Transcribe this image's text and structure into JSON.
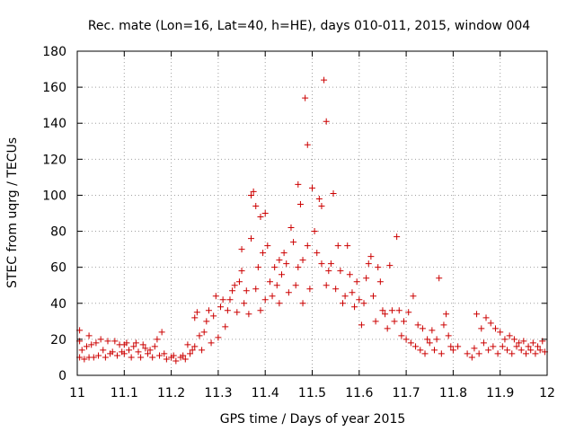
{
  "colors": {
    "points": "#cc0000",
    "axes": "#000000",
    "grid": "#a0a0a0"
  },
  "chart_data": {
    "type": "scatter",
    "title": "Rec. mate (Lon=16, Lat=40, h=HE), days 010-011, 2015, window 004",
    "xlabel": "GPS time / Days of year 2015",
    "ylabel": "STEC from uqrg / TECUs",
    "xlim": [
      11,
      12
    ],
    "ylim": [
      0,
      180
    ],
    "grid": true,
    "x_ticks": [
      11,
      11.1,
      11.2,
      11.3,
      11.4,
      11.5,
      11.6,
      11.7,
      11.8,
      11.9,
      12
    ],
    "x_tick_labels": [
      "11",
      "11.1",
      "11.2",
      "11.3",
      "11.4",
      "11.5",
      "11.6",
      "11.7",
      "11.8",
      "11.9",
      "12"
    ],
    "y_ticks": [
      0,
      20,
      40,
      60,
      80,
      100,
      120,
      140,
      160,
      180
    ],
    "y_tick_labels": [
      "0",
      "20",
      "40",
      "60",
      "80",
      "100",
      "120",
      "140",
      "160",
      "180"
    ],
    "marker": "+",
    "series": [
      {
        "name": "STEC",
        "points": [
          [
            11.005,
            25
          ],
          [
            11.005,
            19
          ],
          [
            11.005,
            10
          ],
          [
            11.01,
            14
          ],
          [
            11.015,
            9
          ],
          [
            11.02,
            16
          ],
          [
            11.025,
            22
          ],
          [
            11.025,
            10
          ],
          [
            11.03,
            17
          ],
          [
            11.035,
            10
          ],
          [
            11.04,
            18
          ],
          [
            11.045,
            11
          ],
          [
            11.05,
            20
          ],
          [
            11.055,
            14
          ],
          [
            11.06,
            10
          ],
          [
            11.065,
            19
          ],
          [
            11.07,
            12
          ],
          [
            11.075,
            13
          ],
          [
            11.08,
            19
          ],
          [
            11.085,
            11
          ],
          [
            11.09,
            17
          ],
          [
            11.095,
            13
          ],
          [
            11.1,
            12
          ],
          [
            11.1,
            17
          ],
          [
            11.105,
            18
          ],
          [
            11.11,
            14
          ],
          [
            11.115,
            10
          ],
          [
            11.12,
            16
          ],
          [
            11.125,
            18
          ],
          [
            11.13,
            13
          ],
          [
            11.135,
            10
          ],
          [
            11.14,
            17
          ],
          [
            11.145,
            15
          ],
          [
            11.15,
            12
          ],
          [
            11.155,
            14
          ],
          [
            11.16,
            10
          ],
          [
            11.165,
            16
          ],
          [
            11.17,
            20
          ],
          [
            11.175,
            11
          ],
          [
            11.18,
            24
          ],
          [
            11.185,
            12
          ],
          [
            11.19,
            9
          ],
          [
            11.2,
            10
          ],
          [
            11.205,
            11
          ],
          [
            11.21,
            8
          ],
          [
            11.22,
            10
          ],
          [
            11.225,
            11
          ],
          [
            11.23,
            9
          ],
          [
            11.235,
            17
          ],
          [
            11.24,
            12
          ],
          [
            11.245,
            14
          ],
          [
            11.25,
            32
          ],
          [
            11.25,
            16
          ],
          [
            11.255,
            35
          ],
          [
            11.26,
            22
          ],
          [
            11.265,
            14
          ],
          [
            11.27,
            24
          ],
          [
            11.275,
            30
          ],
          [
            11.28,
            36
          ],
          [
            11.285,
            18
          ],
          [
            11.29,
            33
          ],
          [
            11.295,
            44
          ],
          [
            11.3,
            21
          ],
          [
            11.305,
            38
          ],
          [
            11.31,
            42
          ],
          [
            11.315,
            27
          ],
          [
            11.32,
            36
          ],
          [
            11.325,
            42
          ],
          [
            11.33,
            47
          ],
          [
            11.335,
            50
          ],
          [
            11.34,
            35
          ],
          [
            11.345,
            52
          ],
          [
            11.35,
            58
          ],
          [
            11.35,
            70
          ],
          [
            11.355,
            40
          ],
          [
            11.36,
            47
          ],
          [
            11.365,
            34
          ],
          [
            11.37,
            76
          ],
          [
            11.37,
            100
          ],
          [
            11.375,
            102
          ],
          [
            11.38,
            48
          ],
          [
            11.38,
            94
          ],
          [
            11.385,
            60
          ],
          [
            11.39,
            36
          ],
          [
            11.39,
            88
          ],
          [
            11.395,
            68
          ],
          [
            11.4,
            42
          ],
          [
            11.4,
            90
          ],
          [
            11.405,
            72
          ],
          [
            11.41,
            52
          ],
          [
            11.415,
            44
          ],
          [
            11.42,
            60
          ],
          [
            11.425,
            50
          ],
          [
            11.43,
            64
          ],
          [
            11.43,
            40
          ],
          [
            11.435,
            56
          ],
          [
            11.44,
            68
          ],
          [
            11.445,
            62
          ],
          [
            11.45,
            46
          ],
          [
            11.455,
            82
          ],
          [
            11.46,
            74
          ],
          [
            11.465,
            50
          ],
          [
            11.47,
            106
          ],
          [
            11.47,
            60
          ],
          [
            11.475,
            95
          ],
          [
            11.48,
            64
          ],
          [
            11.48,
            40
          ],
          [
            11.485,
            154
          ],
          [
            11.49,
            128
          ],
          [
            11.49,
            72
          ],
          [
            11.495,
            48
          ],
          [
            11.5,
            104
          ],
          [
            11.505,
            80
          ],
          [
            11.51,
            68
          ],
          [
            11.515,
            98
          ],
          [
            11.52,
            94
          ],
          [
            11.52,
            62
          ],
          [
            11.525,
            164
          ],
          [
            11.53,
            141
          ],
          [
            11.53,
            50
          ],
          [
            11.535,
            58
          ],
          [
            11.54,
            62
          ],
          [
            11.545,
            101
          ],
          [
            11.55,
            48
          ],
          [
            11.555,
            72
          ],
          [
            11.56,
            58
          ],
          [
            11.565,
            40
          ],
          [
            11.57,
            44
          ],
          [
            11.575,
            72
          ],
          [
            11.58,
            56
          ],
          [
            11.585,
            46
          ],
          [
            11.59,
            38
          ],
          [
            11.595,
            52
          ],
          [
            11.6,
            42
          ],
          [
            11.605,
            28
          ],
          [
            11.61,
            40
          ],
          [
            11.615,
            54
          ],
          [
            11.62,
            62
          ],
          [
            11.625,
            66
          ],
          [
            11.63,
            44
          ],
          [
            11.635,
            30
          ],
          [
            11.64,
            60
          ],
          [
            11.645,
            52
          ],
          [
            11.65,
            36
          ],
          [
            11.655,
            34
          ],
          [
            11.66,
            26
          ],
          [
            11.665,
            61
          ],
          [
            11.67,
            36
          ],
          [
            11.675,
            30
          ],
          [
            11.68,
            77
          ],
          [
            11.685,
            36
          ],
          [
            11.69,
            22
          ],
          [
            11.695,
            30
          ],
          [
            11.7,
            20
          ],
          [
            11.705,
            35
          ],
          [
            11.71,
            18
          ],
          [
            11.715,
            44
          ],
          [
            11.72,
            16
          ],
          [
            11.725,
            28
          ],
          [
            11.73,
            14
          ],
          [
            11.735,
            26
          ],
          [
            11.74,
            12
          ],
          [
            11.745,
            20
          ],
          [
            11.75,
            18
          ],
          [
            11.755,
            25
          ],
          [
            11.76,
            14
          ],
          [
            11.765,
            20
          ],
          [
            11.77,
            54
          ],
          [
            11.775,
            12
          ],
          [
            11.78,
            28
          ],
          [
            11.785,
            34
          ],
          [
            11.79,
            22
          ],
          [
            11.795,
            16
          ],
          [
            11.8,
            14
          ],
          [
            11.81,
            16
          ],
          [
            11.83,
            12
          ],
          [
            11.84,
            10
          ],
          [
            11.845,
            15
          ],
          [
            11.85,
            34
          ],
          [
            11.855,
            12
          ],
          [
            11.86,
            26
          ],
          [
            11.865,
            18
          ],
          [
            11.87,
            32
          ],
          [
            11.875,
            14
          ],
          [
            11.88,
            29
          ],
          [
            11.885,
            16
          ],
          [
            11.89,
            26
          ],
          [
            11.895,
            12
          ],
          [
            11.9,
            24
          ],
          [
            11.905,
            16
          ],
          [
            11.91,
            20
          ],
          [
            11.915,
            14
          ],
          [
            11.92,
            22
          ],
          [
            11.925,
            12
          ],
          [
            11.93,
            20
          ],
          [
            11.935,
            16
          ],
          [
            11.94,
            18
          ],
          [
            11.945,
            14
          ],
          [
            11.95,
            19
          ],
          [
            11.955,
            12
          ],
          [
            11.96,
            16
          ],
          [
            11.965,
            14
          ],
          [
            11.97,
            18
          ],
          [
            11.975,
            12
          ],
          [
            11.98,
            16
          ],
          [
            11.985,
            14
          ],
          [
            11.99,
            19
          ],
          [
            11.995,
            13
          ]
        ]
      }
    ]
  }
}
